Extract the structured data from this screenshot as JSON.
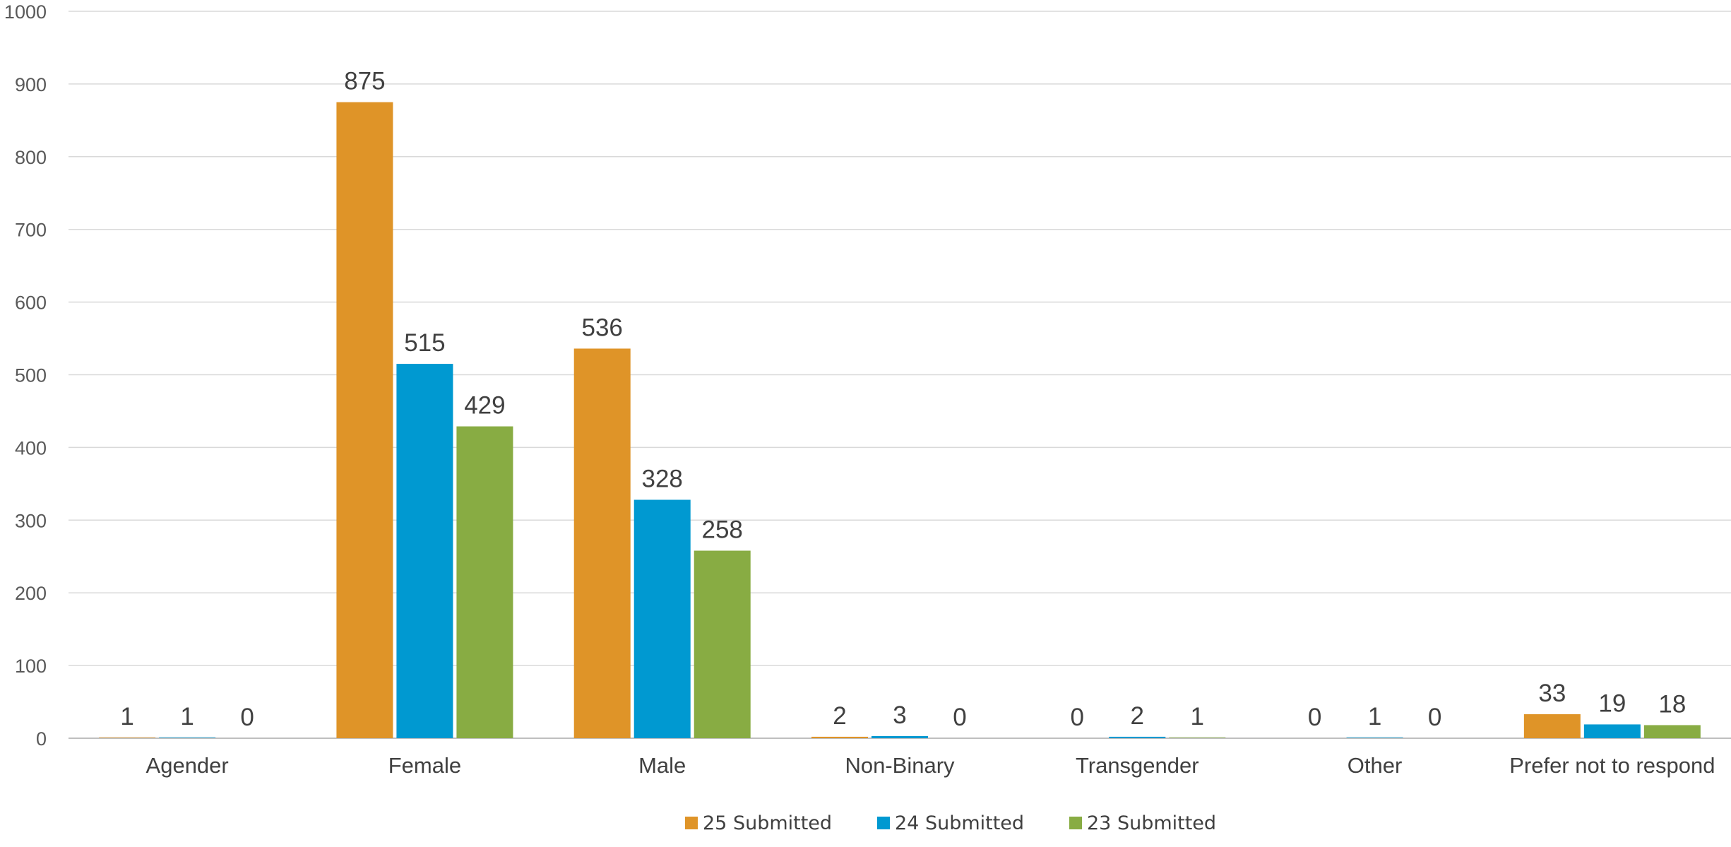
{
  "chart_data": {
    "type": "bar",
    "title": "",
    "xlabel": "",
    "ylabel": "",
    "ylim": [
      0,
      1000
    ],
    "yticks": [
      0,
      100,
      200,
      300,
      400,
      500,
      600,
      700,
      800,
      900,
      1000
    ],
    "grid": true,
    "legend": "bottom",
    "categories": [
      "Agender",
      "Female",
      "Male",
      "Non-Binary",
      "Transgender",
      "Other",
      "Prefer not to respond"
    ],
    "series": [
      {
        "name": "25 Submitted",
        "color": "#DF9428",
        "values": [
          1,
          875,
          536,
          2,
          0,
          0,
          33
        ]
      },
      {
        "name": "24 Submitted",
        "color": "#0099D1",
        "values": [
          1,
          515,
          328,
          3,
          2,
          1,
          19
        ]
      },
      {
        "name": "23 Submitted",
        "color": "#88AC43",
        "values": [
          0,
          429,
          258,
          0,
          1,
          0,
          18
        ]
      }
    ]
  }
}
